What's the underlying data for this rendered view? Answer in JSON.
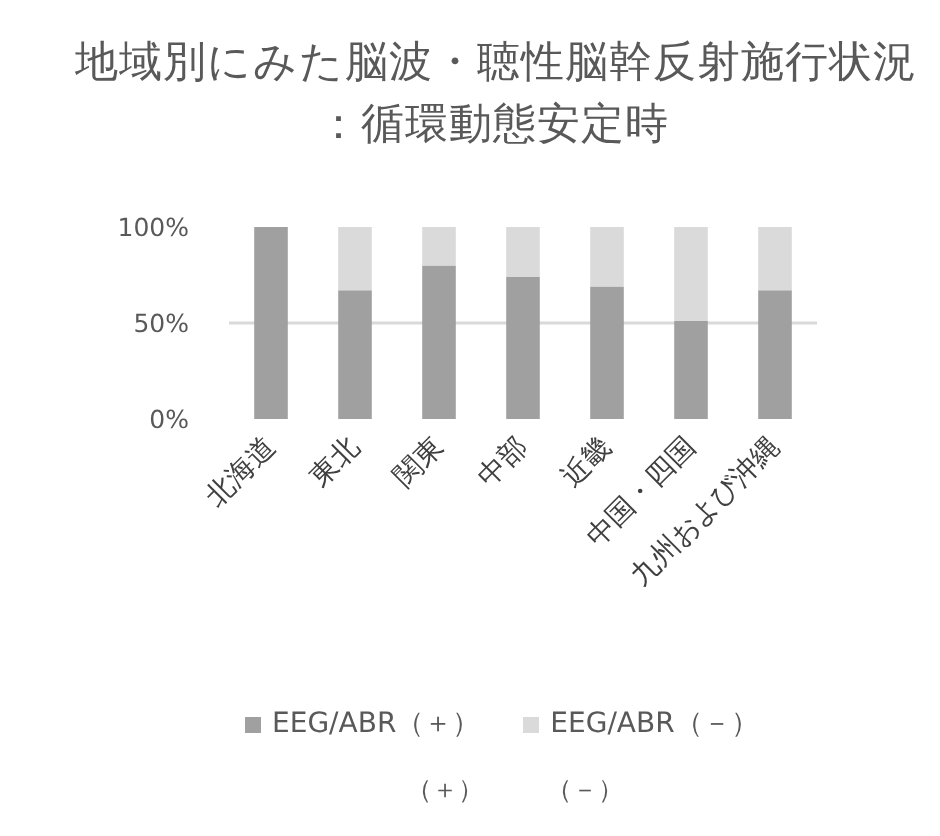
{
  "chart_data": {
    "type": "bar",
    "title": "地域別にみた脳波・聴性脳幹反射施行状況",
    "subtitle": "：循環動態安定時",
    "categories": [
      "北海道",
      "東北",
      "関東",
      "中部",
      "近畿",
      "中国・四国",
      "九州および沖縄"
    ],
    "series": [
      {
        "name": "EEG/ABR（＋）",
        "color": "#a0a0a0",
        "values": [
          100,
          67,
          80,
          74,
          69,
          51,
          67
        ]
      },
      {
        "name": "EEG/ABR（－）",
        "color": "#dadada",
        "values": [
          0,
          33,
          20,
          26,
          31,
          49,
          33
        ]
      }
    ],
    "stacked": true,
    "ylim": [
      0,
      100
    ],
    "yticks": [
      {
        "value": 0,
        "label": "0%"
      },
      {
        "value": 50,
        "label": "50%"
      },
      {
        "value": 100,
        "label": "100%"
      }
    ],
    "grid": "y",
    "legend": "bottom",
    "annotations": [
      "（＋）",
      "（－）"
    ]
  }
}
